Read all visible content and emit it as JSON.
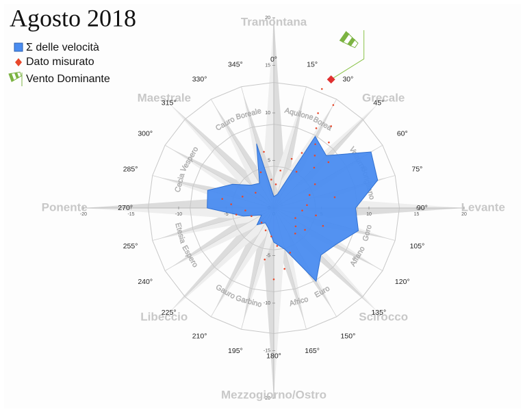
{
  "chart_data": {
    "type": "polar",
    "title": "Agosto 2018",
    "series": [
      {
        "name": "Σ delle velocità",
        "color": "#4a8cf0",
        "angles": [
          0,
          15,
          30,
          45,
          60,
          75,
          90,
          105,
          120,
          135,
          150,
          165,
          180,
          195,
          210,
          225,
          240,
          255,
          270,
          285,
          300,
          315,
          330,
          345
        ],
        "values": [
          1.2,
          1.5,
          8.7,
          7.8,
          11.8,
          11.3,
          8.6,
          9.2,
          7.6,
          7.0,
          8.9,
          4.5,
          3.6,
          2.2,
          1.8,
          2.5,
          1.5,
          3.3,
          7.0,
          7.2,
          5.0,
          3.4,
          3.0,
          7.0
        ]
      }
    ],
    "scatter": {
      "name": "Dato misurato",
      "color": "#e8472a",
      "angles": [
        22,
        25,
        28,
        30,
        33,
        35,
        38,
        40,
        45,
        20,
        27,
        32,
        60,
        70,
        85,
        95,
        100,
        110,
        115,
        125,
        140,
        160,
        170,
        175,
        180,
        185,
        190,
        200,
        220,
        250,
        260,
        265,
        275,
        280,
        290,
        310,
        340,
        350,
        355,
        5,
        10,
        50,
        80,
        130
      ],
      "values": [
        13.5,
        11.0,
        9.5,
        12.5,
        8.0,
        10.5,
        7.0,
        9.0,
        6.0,
        5.5,
        6.5,
        4.5,
        5.0,
        4.0,
        3.5,
        3.0,
        4.5,
        5.5,
        2.5,
        4.0,
        3.5,
        5.0,
        6.5,
        4.0,
        7.5,
        3.0,
        5.5,
        2.5,
        2.0,
        2.5,
        4.0,
        3.0,
        4.5,
        5.5,
        3.5,
        2.5,
        4.0,
        6.0,
        3.0,
        2.5,
        4.0,
        7.5,
        6.5,
        3.0
      ]
    },
    "dominant": {
      "name": "Vento Dominante",
      "angle": 24,
      "value": 14.8,
      "color": "#e03030"
    },
    "xlim": [
      -20,
      20
    ],
    "ylim": [
      -20,
      20
    ],
    "xticks": [
      -20,
      -15,
      -10,
      -5,
      0,
      5,
      10,
      15,
      20
    ],
    "yticks": [
      -20,
      -15,
      -10,
      -5,
      0,
      5,
      10,
      15,
      20
    ],
    "angle_ticks": [
      {
        "value": 0,
        "label": "0°"
      },
      {
        "value": 15,
        "label": "15°"
      },
      {
        "value": 30,
        "label": "30°"
      },
      {
        "value": 45,
        "label": "45°"
      },
      {
        "value": 60,
        "label": "60°"
      },
      {
        "value": 75,
        "label": "75°"
      },
      {
        "value": 90,
        "label": "90°"
      },
      {
        "value": 105,
        "label": "105°"
      },
      {
        "value": 120,
        "label": "120°"
      },
      {
        "value": 135,
        "label": "135°"
      },
      {
        "value": 150,
        "label": "150°"
      },
      {
        "value": 165,
        "label": "165°"
      },
      {
        "value": 180,
        "label": "180°"
      },
      {
        "value": 195,
        "label": "195°"
      },
      {
        "value": 210,
        "label": "210°"
      },
      {
        "value": 225,
        "label": "225°"
      },
      {
        "value": 240,
        "label": "240°"
      },
      {
        "value": 255,
        "label": "255°"
      },
      {
        "value": 270,
        "label": "270°"
      },
      {
        "value": 285,
        "label": "285°"
      },
      {
        "value": 300,
        "label": "300°"
      },
      {
        "value": 315,
        "label": "315°"
      },
      {
        "value": 330,
        "label": "330°"
      },
      {
        "value": 345,
        "label": "345°"
      }
    ],
    "major_winds": [
      "Tramontana",
      "Grecale",
      "Levante",
      "Scirocco",
      "Mezzogiorno/Ostro",
      "Libeccio",
      "Ponente",
      "Maestrale"
    ],
    "minor_winds": [
      "Aquilone",
      "Borea",
      "Volturno",
      "Gorigliano",
      "Goro",
      "Affano",
      "Euro",
      "Africo",
      "Garbino",
      "Gauro",
      "Espero",
      "Etesia",
      "Cecia",
      "Vespero",
      "Cauro",
      "Boreale"
    ]
  }
}
